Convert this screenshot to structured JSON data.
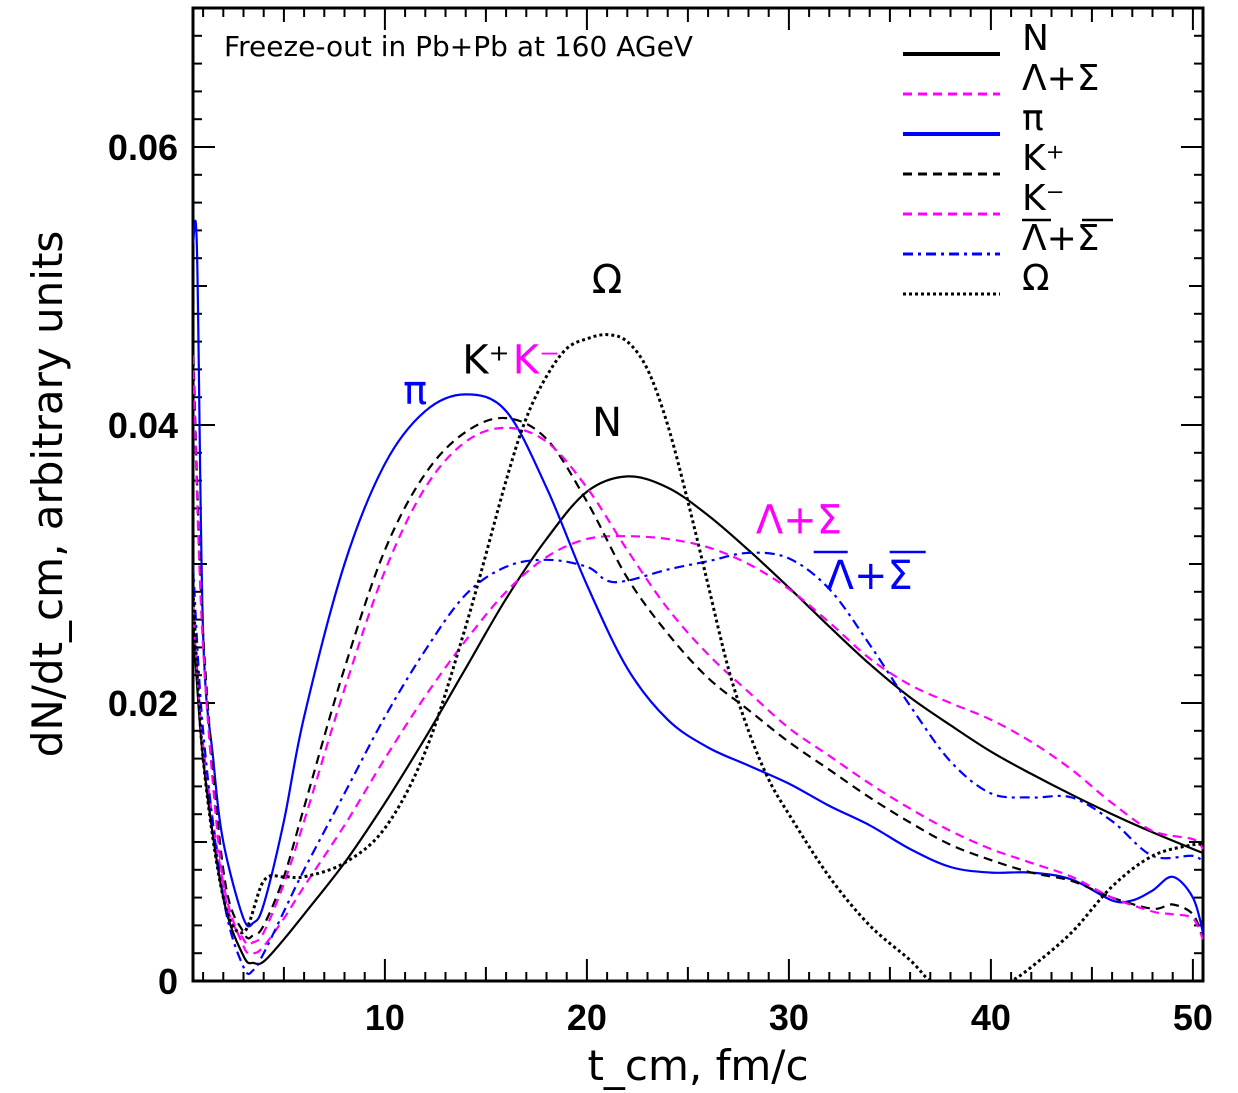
{
  "chart_data": {
    "type": "line",
    "title": "Freeze-out in Pb+Pb at 160 AGeV",
    "xlabel": "t_cm, fm/c",
    "ylabel": "dN/dt_cm, arbitrary units",
    "xlim": [
      0.5,
      50.5
    ],
    "ylim": [
      0,
      0.07
    ],
    "xticks": [
      10,
      20,
      30,
      40,
      50
    ],
    "yticks": [
      0,
      0.02,
      0.04,
      0.06
    ],
    "xtick_labels": [
      "10",
      "20",
      "30",
      "40",
      "50"
    ],
    "ytick_labels": [
      "0",
      "0.02",
      "0.04",
      "0.06"
    ],
    "grid": false,
    "legend_position": "top-right",
    "series": [
      {
        "name": "N",
        "color": "#000000",
        "dash": "solid",
        "x": [
          0.5,
          1,
          2,
          3,
          3.5,
          4,
          5,
          6,
          8,
          10,
          12,
          14,
          16,
          18,
          20,
          22,
          24,
          26,
          28,
          30,
          32,
          34,
          36,
          38,
          40,
          42,
          44,
          46,
          48,
          50,
          50.5
        ],
        "y": [
          0.026,
          0.016,
          0.006,
          0.0018,
          0.0013,
          0.0014,
          0.003,
          0.0048,
          0.0085,
          0.0128,
          0.0175,
          0.0225,
          0.0275,
          0.0318,
          0.0352,
          0.0363,
          0.0355,
          0.0335,
          0.031,
          0.0283,
          0.0255,
          0.0228,
          0.0204,
          0.0184,
          0.0165,
          0.0149,
          0.0134,
          0.012,
          0.0107,
          0.0095,
          0.0092
        ]
      },
      {
        "name": "Λ+Σ",
        "color": "#ff00ff",
        "dash": "dashed",
        "x": [
          0.5,
          1,
          2,
          3,
          3.5,
          4,
          5,
          6,
          8,
          10,
          12,
          14,
          16,
          18,
          20,
          22,
          24,
          26,
          28,
          30,
          32,
          34,
          36,
          38,
          40,
          42,
          44,
          46,
          48,
          50,
          50.5
        ],
        "y": [
          0.027,
          0.017,
          0.007,
          0.0025,
          0.002,
          0.0025,
          0.0045,
          0.0068,
          0.0112,
          0.016,
          0.0205,
          0.0245,
          0.028,
          0.0305,
          0.0318,
          0.032,
          0.0318,
          0.0312,
          0.03,
          0.0282,
          0.0258,
          0.0232,
          0.0213,
          0.02,
          0.0188,
          0.0172,
          0.0152,
          0.0128,
          0.0108,
          0.0102,
          0.0095
        ]
      },
      {
        "name": "π",
        "color": "#0000ff",
        "dash": "solid",
        "x": [
          0.5,
          0.7,
          1,
          1.5,
          2,
          3,
          3.5,
          4,
          5,
          6,
          8,
          10,
          12,
          14,
          16,
          18,
          20,
          22,
          24,
          26,
          28,
          30,
          32,
          34,
          36,
          38,
          40,
          42,
          44,
          46,
          47,
          48,
          49,
          50,
          50.5
        ],
        "y": [
          0.053,
          0.0525,
          0.025,
          0.016,
          0.01,
          0.0045,
          0.0042,
          0.0055,
          0.0115,
          0.019,
          0.03,
          0.0372,
          0.041,
          0.0422,
          0.041,
          0.0355,
          0.0285,
          0.0225,
          0.0188,
          0.0168,
          0.0155,
          0.0142,
          0.0126,
          0.0112,
          0.0095,
          0.0082,
          0.0078,
          0.0078,
          0.0073,
          0.0058,
          0.0058,
          0.0065,
          0.0075,
          0.006,
          0.0035
        ]
      },
      {
        "name": "K⁺",
        "color": "#000000",
        "dash": "dashed",
        "x": [
          0.5,
          1,
          2,
          3,
          3.5,
          4,
          5,
          6,
          8,
          10,
          12,
          14,
          16,
          18,
          20,
          22,
          24,
          26,
          28,
          30,
          32,
          34,
          36,
          38,
          40,
          42,
          44,
          46,
          48,
          49,
          50,
          50.5
        ],
        "y": [
          0.046,
          0.025,
          0.008,
          0.0035,
          0.0033,
          0.004,
          0.0075,
          0.0125,
          0.0225,
          0.031,
          0.0365,
          0.0395,
          0.0405,
          0.039,
          0.0345,
          0.029,
          0.025,
          0.0218,
          0.0195,
          0.0172,
          0.0152,
          0.0132,
          0.0114,
          0.0098,
          0.0087,
          0.0078,
          0.0072,
          0.006,
          0.0052,
          0.0055,
          0.0048,
          0.003
        ]
      },
      {
        "name": "K⁻",
        "color": "#ff00ff",
        "dash": "dashed",
        "x": [
          0.5,
          1,
          2,
          3,
          3.5,
          4,
          5,
          6,
          8,
          10,
          12,
          14,
          16,
          18,
          20,
          22,
          24,
          26,
          28,
          30,
          32,
          34,
          36,
          38,
          40,
          42,
          44,
          46,
          48,
          49,
          50,
          50.5
        ],
        "y": [
          0.045,
          0.024,
          0.007,
          0.003,
          0.0028,
          0.0035,
          0.007,
          0.0115,
          0.021,
          0.0295,
          0.0355,
          0.0388,
          0.0398,
          0.0388,
          0.0355,
          0.031,
          0.0268,
          0.0235,
          0.0208,
          0.0182,
          0.0162,
          0.0142,
          0.0124,
          0.0108,
          0.0095,
          0.0085,
          0.0075,
          0.006,
          0.005,
          0.0048,
          0.0045,
          0.003
        ]
      },
      {
        "name": "Λ+Σ (anti)",
        "color": "#0000ff",
        "dash": "dashdot",
        "x": [
          0.5,
          1,
          2,
          3,
          3.5,
          4,
          5,
          6,
          8,
          10,
          12,
          14,
          16,
          18,
          20,
          21,
          22,
          24,
          26,
          28,
          30,
          32,
          34,
          36,
          38,
          40,
          42,
          44,
          46,
          48,
          50,
          50.5
        ],
        "y": [
          0.03,
          0.018,
          0.006,
          0.001,
          0.0008,
          0.002,
          0.005,
          0.008,
          0.0135,
          0.019,
          0.0238,
          0.0278,
          0.0298,
          0.0303,
          0.0298,
          0.0288,
          0.0288,
          0.0296,
          0.0302,
          0.0308,
          0.0304,
          0.0282,
          0.0242,
          0.0198,
          0.0158,
          0.0135,
          0.0132,
          0.0132,
          0.0115,
          0.009,
          0.009,
          0.0085
        ]
      },
      {
        "name": "Ω",
        "color": "#000000",
        "dash": "dotted",
        "x": [
          0.5,
          1,
          2,
          3,
          4,
          5,
          6,
          8,
          10,
          12,
          14,
          16,
          17,
          18,
          19,
          20,
          21,
          22,
          23,
          24,
          25,
          26,
          27,
          28,
          29,
          30,
          32,
          34,
          36,
          37,
          38,
          40,
          41,
          42,
          44,
          46,
          48,
          50,
          50.5
        ],
        "y": [
          0.028,
          0.016,
          0.006,
          0.0035,
          0.0072,
          0.0075,
          0.0075,
          0.0085,
          0.011,
          0.0165,
          0.0255,
          0.036,
          0.0405,
          0.0435,
          0.0455,
          0.0462,
          0.0465,
          0.046,
          0.044,
          0.04,
          0.0345,
          0.0285,
          0.0225,
          0.018,
          0.0145,
          0.012,
          0.0075,
          0.004,
          0.0015,
          0.0,
          -0.0005,
          -0.0005,
          0.0,
          0.001,
          0.0035,
          0.0068,
          0.009,
          0.0098,
          0.0098
        ]
      }
    ],
    "legend": [
      "N",
      "Λ+Σ",
      "π",
      "K⁺",
      "K⁻",
      "Λ+Σ",
      "Ω"
    ],
    "annotations": [
      {
        "text": "π",
        "x": 11.5,
        "y": 0.0415,
        "color": "#0000ff"
      },
      {
        "text": "K⁺",
        "x": 15.0,
        "y": 0.0437,
        "color": "#000000"
      },
      {
        "text": "K⁻",
        "x": 17.5,
        "y": 0.0437,
        "color": "#ff00ff"
      },
      {
        "text": "Ω",
        "x": 21.0,
        "y": 0.0495,
        "color": "#000000"
      },
      {
        "text": "N",
        "x": 21.0,
        "y": 0.0392,
        "color": "#000000"
      },
      {
        "text": "Λ+Σ",
        "x": 30.5,
        "y": 0.0322,
        "color": "#ff00ff"
      },
      {
        "text": "Λ+Σ",
        "x": 34.0,
        "y": 0.0282,
        "color": "#0000ff"
      }
    ]
  }
}
